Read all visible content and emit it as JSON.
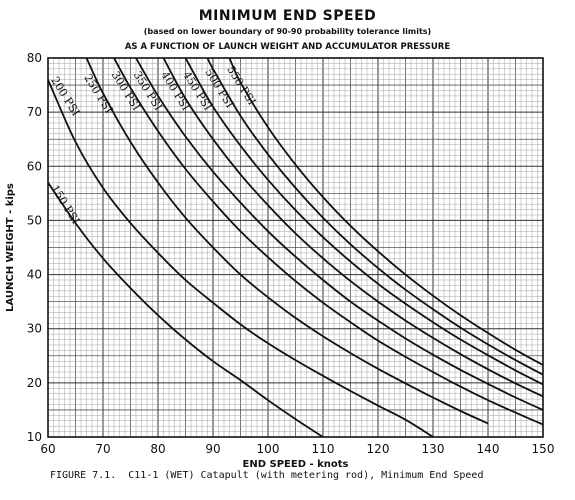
{
  "chart_data": {
    "type": "line",
    "title": "MINIMUM END SPEED",
    "subtitle": "(based on lower boundary of 90-90 probability tolerance limits)",
    "subtitle2": "AS A FUNCTION OF LAUNCH WEIGHT AND ACCUMULATOR PRESSURE",
    "xlabel": "END SPEED - knots",
    "ylabel": "LAUNCH WEIGHT - kips",
    "xlim": [
      60,
      150
    ],
    "ylim": [
      10,
      80
    ],
    "xticks": [
      "60",
      "70",
      "80",
      "90",
      "100",
      "110",
      "120",
      "130",
      "140",
      "150"
    ],
    "yticks": [
      "10",
      "20",
      "30",
      "40",
      "50",
      "60",
      "70",
      "80"
    ],
    "grid": true,
    "series": [
      {
        "name": "150 PSI",
        "x": [
          60,
          65,
          70,
          75,
          80,
          85,
          90,
          95,
          100,
          105,
          110
        ],
        "y": [
          57,
          49.5,
          43,
          37.5,
          32.5,
          28,
          24,
          20.5,
          16.8,
          13.3,
          10
        ]
      },
      {
        "name": "200 PSI",
        "x": [
          60,
          65,
          70,
          75,
          80,
          85,
          90,
          95,
          100,
          105,
          110,
          115,
          120,
          125,
          130
        ],
        "y": [
          76,
          64.5,
          56,
          49.5,
          44,
          39,
          34.8,
          30.8,
          27.3,
          24.2,
          21.3,
          18.5,
          15.8,
          13.2,
          10
        ]
      },
      {
        "name": "250 PSI",
        "x": [
          67,
          70,
          75,
          80,
          85,
          90,
          95,
          100,
          105,
          110,
          115,
          120,
          125,
          130,
          135,
          140
        ],
        "y": [
          80,
          73.5,
          64.5,
          57,
          50.5,
          45,
          40,
          35.8,
          32,
          28.6,
          25.5,
          22.6,
          19.9,
          17.3,
          14.8,
          12.5
        ]
      },
      {
        "name": "300 PSI",
        "x": [
          72,
          75,
          80,
          85,
          90,
          95,
          100,
          105,
          110,
          115,
          120,
          125,
          130,
          135,
          140,
          145,
          150
        ],
        "y": [
          80,
          74.5,
          66.5,
          59.5,
          53.5,
          48,
          43.2,
          38.8,
          34.8,
          31.2,
          27.8,
          24.8,
          22,
          19.3,
          16.8,
          14.5,
          12.3
        ]
      },
      {
        "name": "350 PSI",
        "x": [
          76,
          80,
          85,
          90,
          95,
          100,
          105,
          110,
          115,
          120,
          125,
          130,
          135,
          140,
          145,
          150
        ],
        "y": [
          80,
          73,
          65.5,
          59,
          53.3,
          48,
          43.3,
          39,
          35,
          31.5,
          28.2,
          25.2,
          22.4,
          19.8,
          17.3,
          15
        ]
      },
      {
        "name": "400 PSI",
        "x": [
          81,
          85,
          90,
          95,
          100,
          105,
          110,
          115,
          120,
          125,
          130,
          135,
          140,
          145,
          150
        ],
        "y": [
          80,
          72.5,
          65,
          58.5,
          52.8,
          47.6,
          43,
          38.8,
          35,
          31.5,
          28.3,
          25.3,
          22.5,
          19.9,
          17.5
        ]
      },
      {
        "name": "450 PSI",
        "x": [
          85,
          90,
          95,
          100,
          105,
          110,
          115,
          120,
          125,
          130,
          135,
          140,
          145,
          150
        ],
        "y": [
          80,
          71,
          63.8,
          57.5,
          51.9,
          46.9,
          42.4,
          38.3,
          34.6,
          31.2,
          28,
          25.1,
          22.3,
          19.7
        ]
      },
      {
        "name": "500 PSI",
        "x": [
          89,
          90,
          95,
          100,
          105,
          110,
          115,
          120,
          125,
          130,
          135,
          140,
          145,
          150
        ],
        "y": [
          80,
          78,
          69.3,
          62.2,
          56,
          50.5,
          45.6,
          41.2,
          37.2,
          33.6,
          30.2,
          27.1,
          24.2,
          21.5
        ]
      },
      {
        "name": "550 PSI",
        "x": [
          93,
          95,
          100,
          105,
          110,
          115,
          120,
          125,
          130,
          135,
          140,
          145,
          150
        ],
        "y": [
          80,
          75.5,
          67.2,
          60.3,
          54.3,
          49,
          44.3,
          40,
          36.1,
          32.5,
          29.2,
          26.1,
          23.3
        ]
      }
    ],
    "series_labels": [
      "150 PSI",
      "200 PSI",
      "250 PSI",
      "300 PSI",
      "350 PSI",
      "400 PSI",
      "450 PSI",
      "500 PSI",
      "550 PSI"
    ],
    "label_anchors": [
      {
        "x": 60.5,
        "y": 56
      },
      {
        "x": 60.5,
        "y": 76
      },
      {
        "x": 66.5,
        "y": 76.5
      },
      {
        "x": 71.5,
        "y": 77
      },
      {
        "x": 75.5,
        "y": 77
      },
      {
        "x": 80.5,
        "y": 77
      },
      {
        "x": 84.5,
        "y": 77
      },
      {
        "x": 88.5,
        "y": 77.5
      },
      {
        "x": 92.5,
        "y": 78
      }
    ]
  },
  "caption": "FIGURE 7.1.  C11-1 (WET) Catapult (with metering rod), Minimum End Speed",
  "colors": {
    "ink": "#111111",
    "grid_major": "#555555",
    "grid_minor": "#9a9a9a",
    "paper": "#ffffff"
  }
}
